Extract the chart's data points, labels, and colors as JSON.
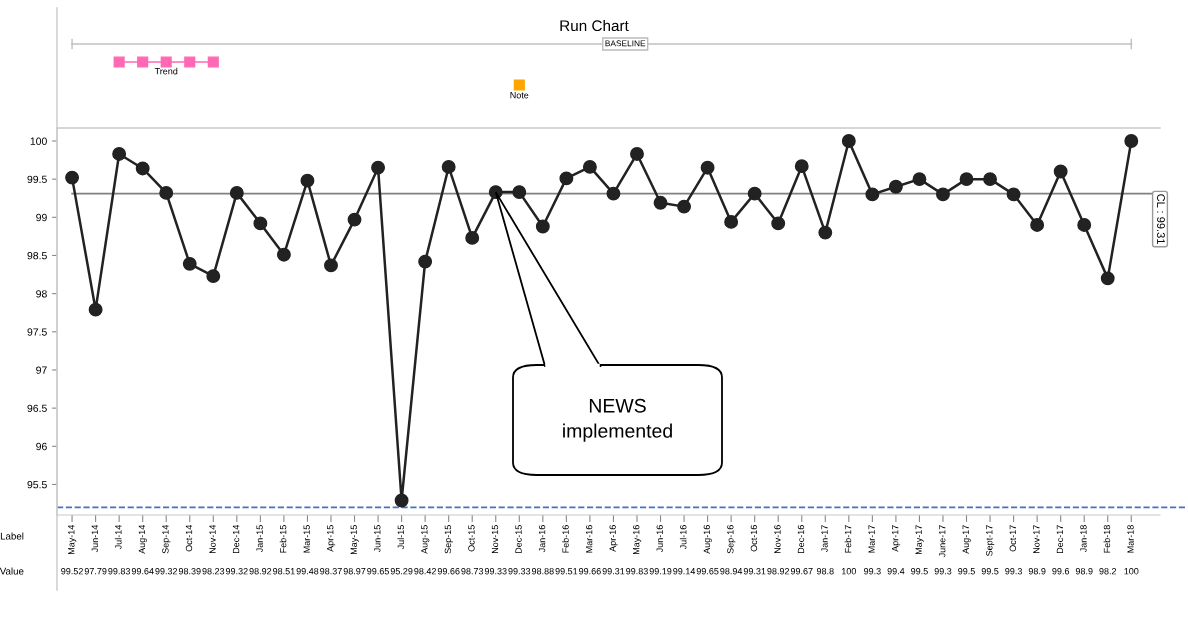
{
  "chart_data": {
    "type": "line",
    "title": "Run Chart",
    "categories": [
      "May-14",
      "Jun-14",
      "Jul-14",
      "Aug-14",
      "Sep-14",
      "Oct-14",
      "Nov-14",
      "Dec-14",
      "Jan-15",
      "Feb-15",
      "Mar-15",
      "Apr-15",
      "May-15",
      "Jun-15",
      "Jul-15",
      "Aug-15",
      "Sep-15",
      "Oct-15",
      "Nov-15",
      "Dec-15",
      "Jan-16",
      "Feb-16",
      "Mar-16",
      "Apr-16",
      "May-16",
      "Jun-16",
      "Jul-16",
      "Aug-16",
      "Sep-16",
      "Oct-16",
      "Nov-16",
      "Dec-16",
      "Jan-17",
      "Feb-17",
      "Mar-17",
      "Apr-17",
      "May-17",
      "June-17",
      "Aug-17",
      "Sept-17",
      "Oct-17",
      "Nov-17",
      "Dec-17",
      "Jan-18",
      "Feb-18",
      "Mar-18"
    ],
    "series": [
      {
        "color": "#222222",
        "values": [
          99.52,
          97.79,
          99.83,
          99.64,
          99.32,
          98.39,
          98.23,
          99.32,
          98.92,
          98.51,
          99.48,
          98.37,
          98.97,
          99.65,
          95.29,
          98.42,
          99.66,
          98.73,
          99.33,
          99.33,
          98.88,
          99.51,
          99.66,
          99.31,
          99.83,
          99.19,
          99.14,
          99.65,
          98.94,
          99.31,
          98.92,
          99.67,
          98.8,
          100,
          99.3,
          99.4,
          99.5,
          99.3,
          99.5,
          99.5,
          99.3,
          98.9,
          99.6,
          98.9,
          98.2,
          100
        ]
      }
    ],
    "marker": "circle",
    "line_style": "solid",
    "grid": false,
    "data_labels": true,
    "ylim": [
      95.1,
      100.17
    ],
    "yticks": [
      95.5,
      96,
      96.5,
      97,
      97.5,
      98,
      98.5,
      99,
      99.5,
      100
    ],
    "ref_lines": [
      {
        "axis": "y",
        "value": 99.31,
        "label": "CL : 99.31",
        "color": "#808080",
        "line_style": "solid"
      },
      {
        "axis": "y",
        "value": 95.2,
        "color": "#4472c4",
        "line_style": "dashed"
      }
    ],
    "annotations": [
      "NEWS implemented",
      "BASELINE",
      "Trend",
      "Note",
      "Label",
      "Value"
    ]
  }
}
